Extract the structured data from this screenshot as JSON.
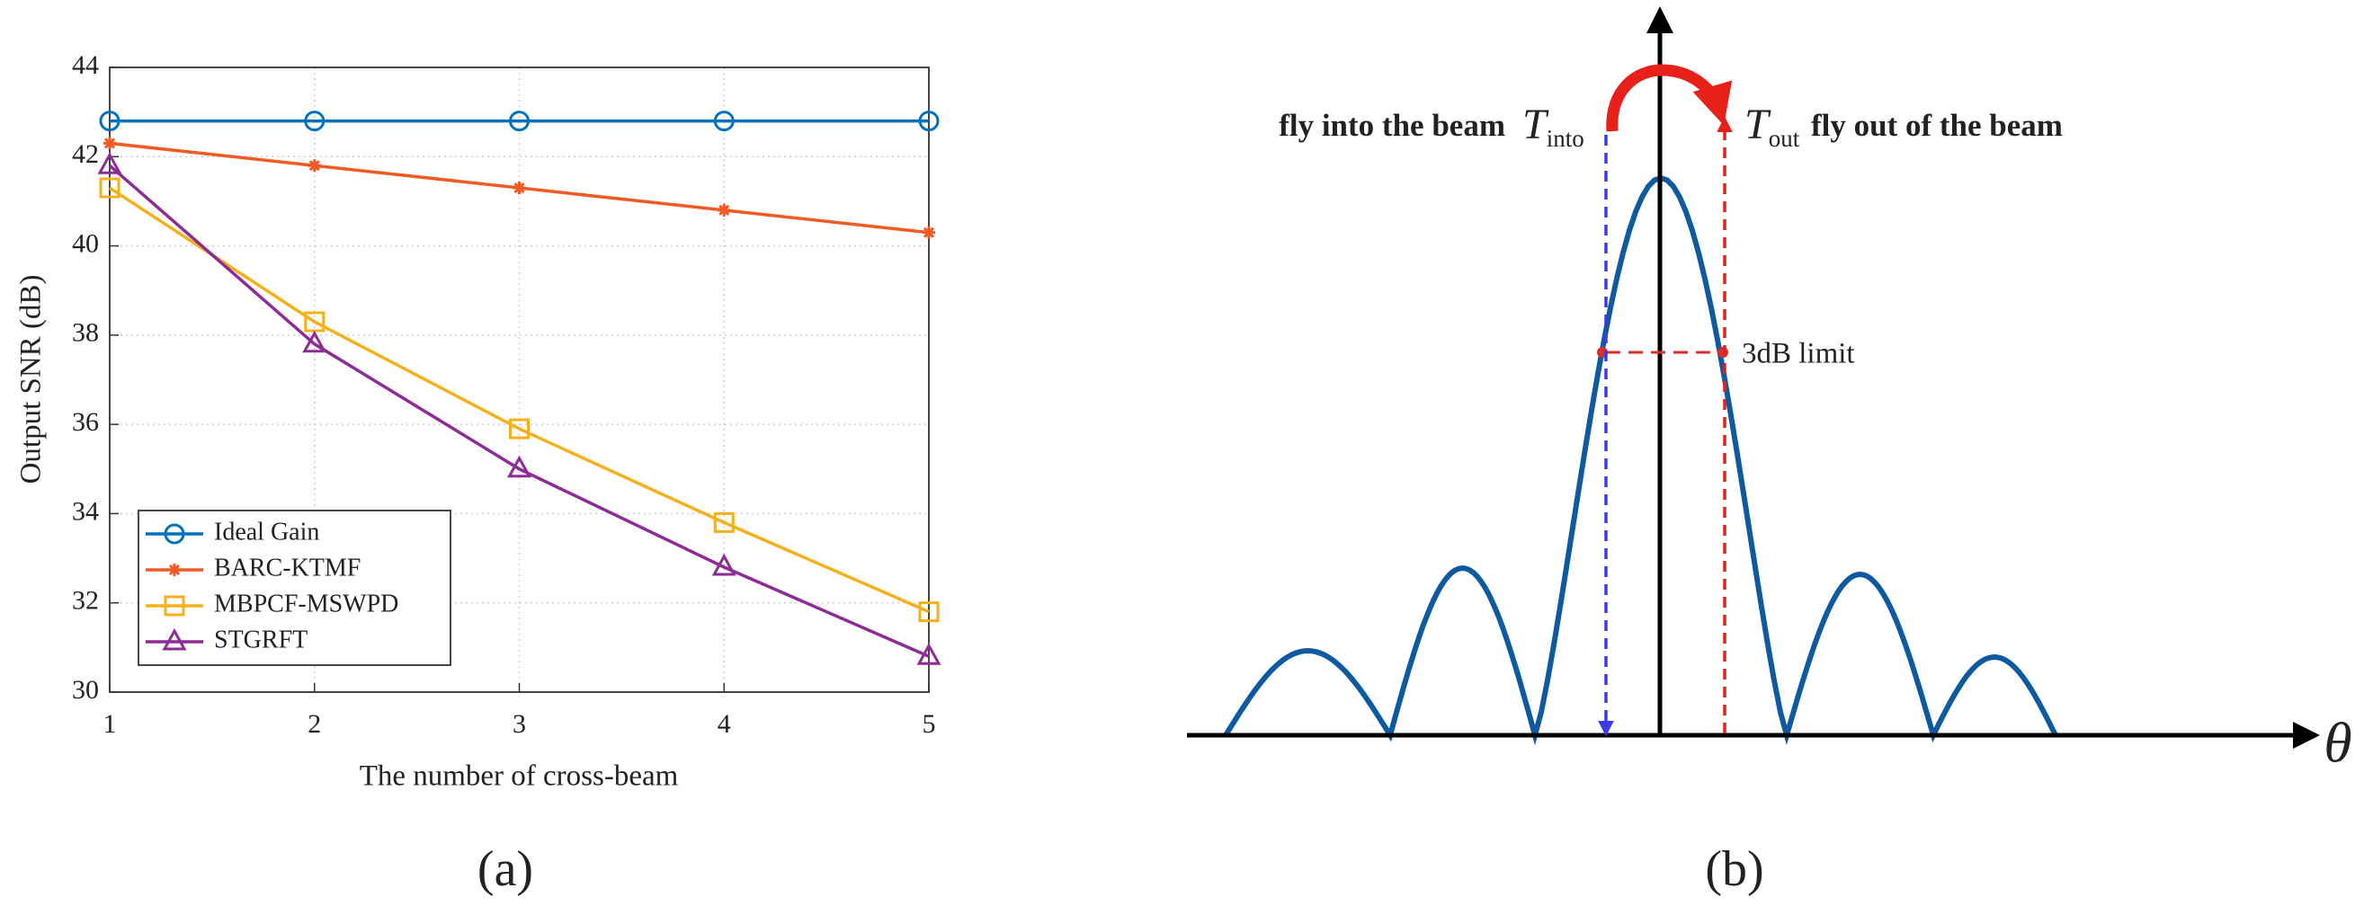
{
  "chart_data": {
    "type": "line",
    "x_label": "The number of cross-beam",
    "y_label": "Output SNR (dB)",
    "caption": "(a)",
    "x": [
      1,
      2,
      3,
      4,
      5
    ],
    "xlim": [
      1,
      5
    ],
    "xticks": [
      1,
      2,
      3,
      4,
      5
    ],
    "ylim": [
      30,
      44
    ],
    "yticks": [
      30,
      32,
      34,
      36,
      38,
      40,
      42,
      44
    ],
    "grid": true,
    "legend": "lower left",
    "series": [
      {
        "name": "Ideal Gain",
        "color": "#0072bd",
        "marker": "circle",
        "values": [
          42.8,
          42.8,
          42.8,
          42.8,
          42.8
        ]
      },
      {
        "name": "BARC-KTMF",
        "color": "#f05a23",
        "marker": "asterisk",
        "values": [
          42.3,
          41.8,
          41.3,
          40.8,
          40.3
        ]
      },
      {
        "name": "MBPCF-MSWPD",
        "color": "#f5b11c",
        "marker": "square",
        "values": [
          41.3,
          38.3,
          35.9,
          33.8,
          31.8
        ]
      },
      {
        "name": "STGRFT",
        "color": "#8e2c96",
        "marker": "triangle",
        "values": [
          41.8,
          37.8,
          35.0,
          32.8,
          30.8
        ]
      }
    ]
  },
  "diagram": {
    "caption": "(b)",
    "axis_label": "θ",
    "into_text": "fly into the beam",
    "into_symbol": "T",
    "into_subscript": "into",
    "out_symbol": "T",
    "out_subscript": "out",
    "out_text": "fly out of the beam",
    "limit_label": "3dB limit"
  }
}
